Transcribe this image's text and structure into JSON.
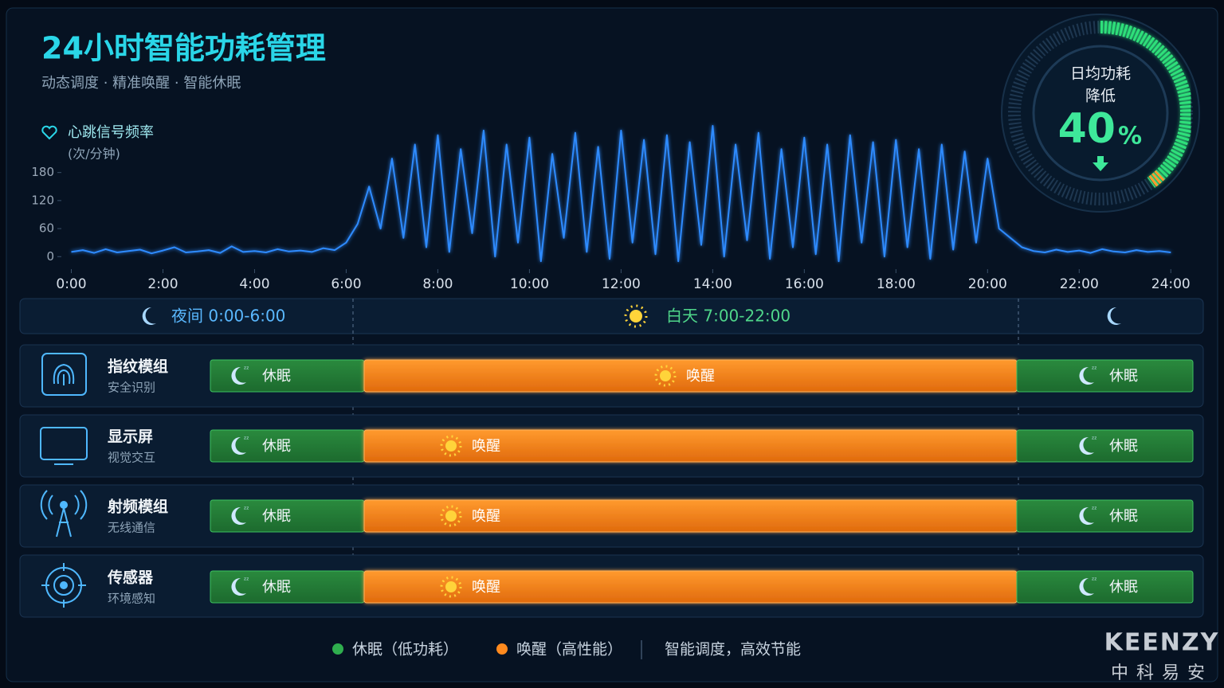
{
  "header": {
    "title": "24小时智能功耗管理",
    "subtitle": "动态调度 · 精准唤醒 · 智能休眠"
  },
  "chart_data": {
    "type": "line",
    "title": "心跳信号频率",
    "subtitle": "(次/分钟)",
    "color": "#2e8bff",
    "x": [
      0,
      0.25,
      0.5,
      0.75,
      1,
      1.25,
      1.5,
      1.75,
      2,
      2.25,
      2.5,
      2.75,
      3,
      3.25,
      3.5,
      3.75,
      4,
      4.25,
      4.5,
      4.75,
      5,
      5.25,
      5.5,
      5.75,
      6,
      6.25,
      6.5,
      6.75,
      7,
      7.25,
      7.5,
      7.75,
      8,
      8.25,
      8.5,
      8.75,
      9,
      9.25,
      9.5,
      9.75,
      10,
      10.25,
      10.5,
      10.75,
      11,
      11.25,
      11.5,
      11.75,
      12,
      12.25,
      12.5,
      12.75,
      13,
      13.25,
      13.5,
      13.75,
      14,
      14.25,
      14.5,
      14.75,
      15,
      15.25,
      15.5,
      15.75,
      16,
      16.25,
      16.5,
      16.75,
      17,
      17.25,
      17.5,
      17.75,
      18,
      18.25,
      18.5,
      18.75,
      19,
      19.25,
      19.5,
      19.75,
      20,
      20.25,
      20.5,
      20.75,
      21,
      21.25,
      21.5,
      21.75,
      22,
      22.25,
      22.5,
      22.75,
      23,
      23.25,
      23.5,
      23.75,
      24
    ],
    "values": [
      10,
      14,
      8,
      16,
      9,
      12,
      15,
      7,
      13,
      20,
      9,
      11,
      14,
      8,
      22,
      10,
      12,
      9,
      16,
      11,
      13,
      10,
      18,
      14,
      30,
      70,
      150,
      60,
      210,
      40,
      240,
      20,
      260,
      10,
      230,
      50,
      270,
      0,
      240,
      30,
      255,
      -10,
      220,
      40,
      265,
      10,
      235,
      -5,
      270,
      30,
      250,
      5,
      260,
      -10,
      245,
      25,
      280,
      0,
      240,
      35,
      265,
      -5,
      230,
      20,
      255,
      5,
      240,
      -10,
      260,
      30,
      245,
      0,
      250,
      20,
      230,
      -5,
      240,
      15,
      225,
      30,
      210,
      60,
      40,
      20,
      12,
      9,
      15,
      10,
      13,
      8,
      16,
      11,
      9,
      14,
      10,
      12,
      9
    ],
    "xlim": [
      -0.2,
      24.5
    ],
    "ylim": [
      -20,
      280
    ],
    "yticks": [
      0,
      60,
      120,
      180
    ],
    "xticks": [
      {
        "value": 0,
        "label": "0:00"
      },
      {
        "value": 2,
        "label": "2:00"
      },
      {
        "value": 4,
        "label": "4:00"
      },
      {
        "value": 6,
        "label": "6:00"
      },
      {
        "value": 8,
        "label": "8:00"
      },
      {
        "value": 10,
        "label": "10:00"
      },
      {
        "value": 12,
        "label": "12:00"
      },
      {
        "value": 14,
        "label": "14:00"
      },
      {
        "value": 16,
        "label": "16:00"
      },
      {
        "value": 18,
        "label": "18:00"
      },
      {
        "value": 20,
        "label": "20:00"
      },
      {
        "value": 22,
        "label": "22:00"
      },
      {
        "value": 24,
        "label": "24:00"
      }
    ]
  },
  "gauge": {
    "title": "日均功耗",
    "subtitle": "降低",
    "value": 40,
    "unit": "%"
  },
  "timeline": {
    "night": "夜间 0:00-6:00",
    "day": "白天 7:00-22:00"
  },
  "modules": [
    {
      "name": "指纹模组",
      "desc": "安全识别",
      "segments": [
        "休眠",
        "唤醒",
        "休眠"
      ]
    },
    {
      "name": "显示屏",
      "desc": "视觉交互",
      "segments": [
        "休眠",
        "唤醒",
        "休眠"
      ]
    },
    {
      "name": "射频模组",
      "desc": "无线通信",
      "segments": [
        "休眠",
        "唤醒",
        "休眠"
      ]
    },
    {
      "name": "传感器",
      "desc": "环境感知",
      "segments": [
        "休眠",
        "唤醒",
        "休眠"
      ]
    }
  ],
  "legend": {
    "sleep": "休眠（低功耗）",
    "wake": "唤醒（高性能）",
    "note": "智能调度，高效节能"
  },
  "brand": {
    "name": "KEENZY",
    "cn": "中科易安"
  }
}
